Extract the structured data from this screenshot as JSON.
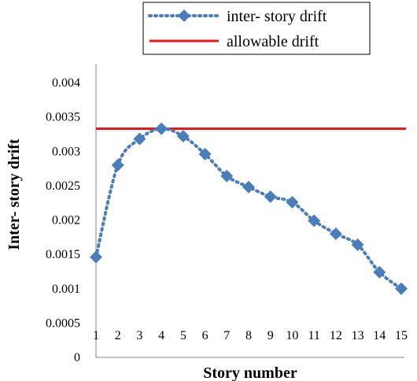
{
  "chart_data": {
    "type": "line",
    "xlabel": "Story number",
    "ylabel": "Inter- story drift",
    "ylim": [
      0,
      0.004
    ],
    "y_ticks": [
      "0",
      "0.0005",
      "0.001",
      "0.0015",
      "0.002",
      "0.0025",
      "0.003",
      "0.0035",
      "0.004"
    ],
    "categories": [
      "1",
      "2",
      "3",
      "4",
      "5",
      "6",
      "7",
      "8",
      "9",
      "10",
      "11",
      "12",
      "13",
      "14",
      "15"
    ],
    "grid": false,
    "legend_position": "top-right",
    "series": [
      {
        "name": "inter- story drift",
        "style": "dotted-with-diamond-markers",
        "color": "#4a7ebb",
        "values": [
          0.00146,
          0.0028,
          0.00318,
          0.00333,
          0.00322,
          0.00296,
          0.00264,
          0.00248,
          0.00234,
          0.00226,
          0.00199,
          0.0018,
          0.00164,
          0.00124,
          0.001
        ]
      },
      {
        "name": "allowable drift",
        "style": "solid",
        "color": "#e8191c",
        "values": [
          0.00333,
          0.00333,
          0.00333,
          0.00333,
          0.00333,
          0.00333,
          0.00333,
          0.00333,
          0.00333,
          0.00333,
          0.00333,
          0.00333,
          0.00333,
          0.00333,
          0.00333
        ]
      }
    ]
  }
}
